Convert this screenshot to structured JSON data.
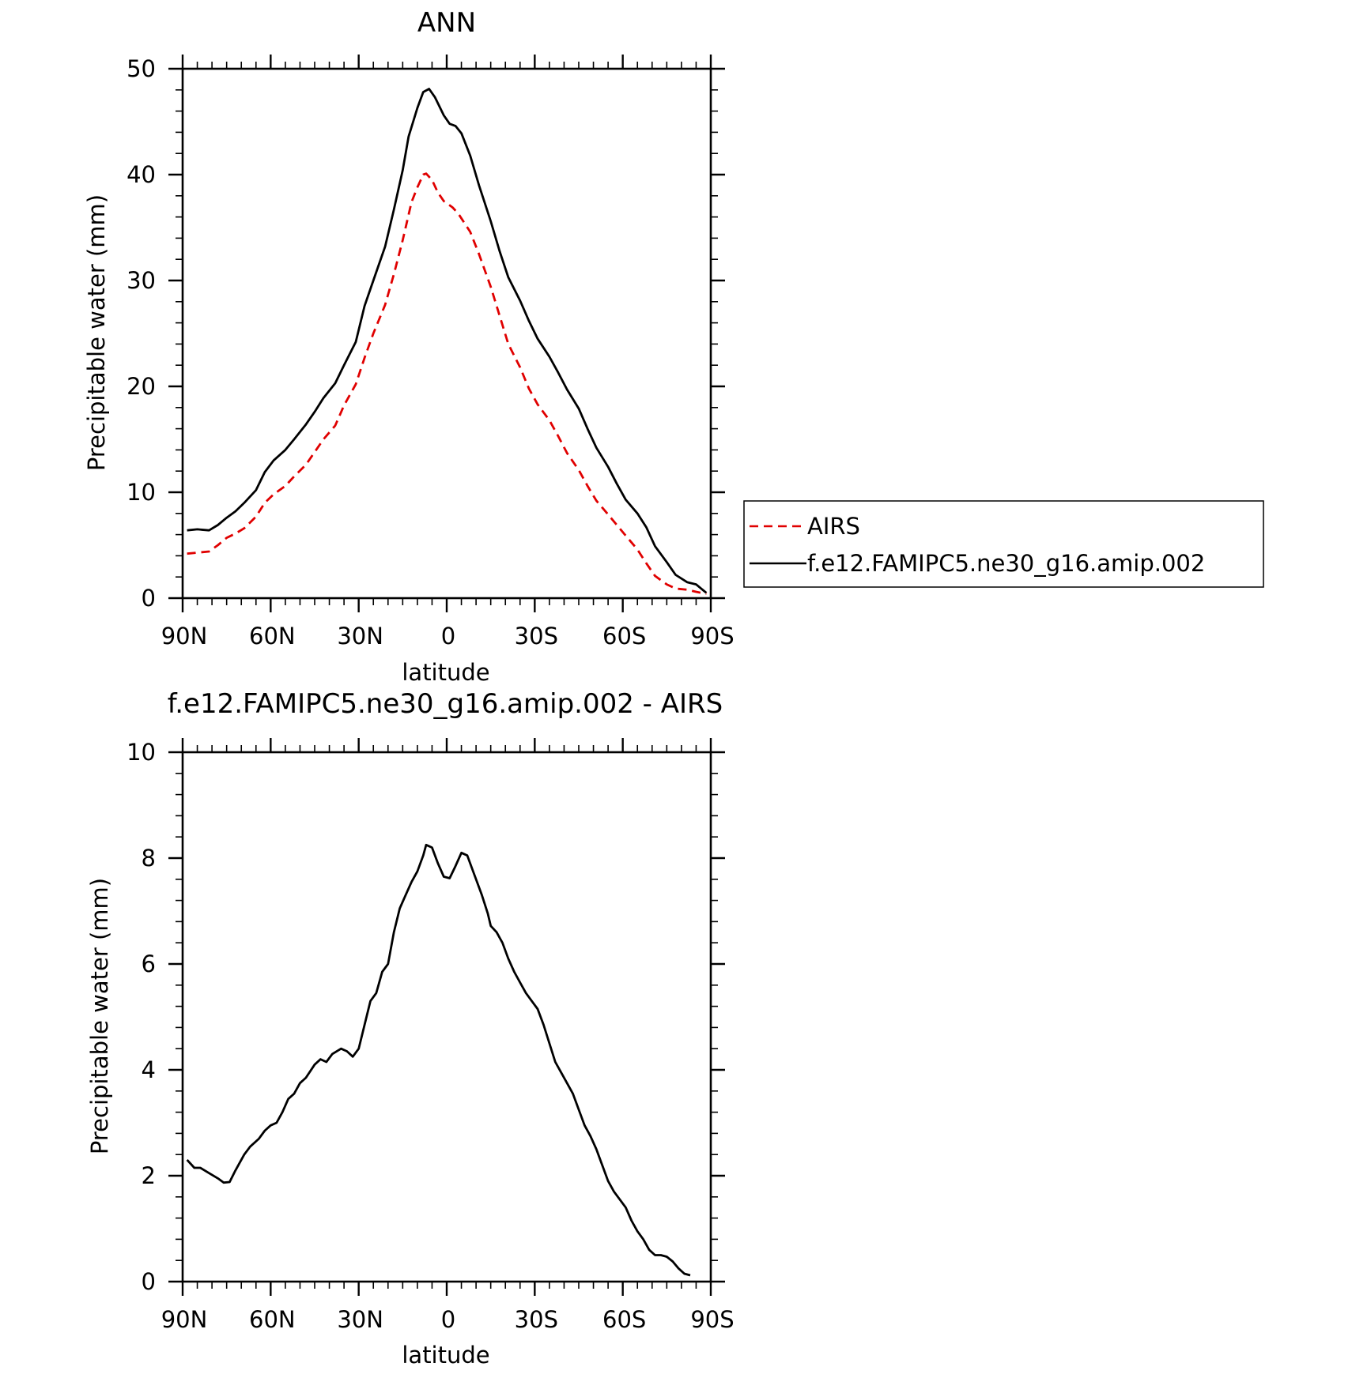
{
  "chart_data": [
    {
      "type": "line",
      "title": "ANN",
      "xlabel": "latitude",
      "ylabel": "Precipitable water (mm)",
      "xlim": [
        90,
        -90
      ],
      "ylim": [
        0,
        50
      ],
      "x_tick_values": [
        90,
        60,
        30,
        0,
        -30,
        -60,
        -90
      ],
      "x_tick_labels": [
        "90N",
        "60N",
        "30N",
        "0",
        "30S",
        "60S",
        "90S"
      ],
      "y_tick_values": [
        0,
        10,
        20,
        30,
        40,
        50
      ],
      "y_tick_labels": [
        "0",
        "10",
        "20",
        "30",
        "40",
        "50"
      ],
      "grid": false,
      "legend_position": "right",
      "series": [
        {
          "name": "AIRS",
          "color": "#e00000",
          "dash": "dashed",
          "points": [
            [
              88.5,
              4.2
            ],
            [
              85,
              4.3
            ],
            [
              81,
              4.4
            ],
            [
              78,
              5.0
            ],
            [
              75,
              5.7
            ],
            [
              72,
              6.1
            ],
            [
              69,
              6.6
            ],
            [
              65,
              7.7
            ],
            [
              62,
              9.0
            ],
            [
              59,
              9.8
            ],
            [
              55,
              10.6
            ],
            [
              52,
              11.5
            ],
            [
              48,
              12.6
            ],
            [
              45,
              13.8
            ],
            [
              42,
              15.0
            ],
            [
              38,
              16.3
            ],
            [
              35,
              18.2
            ],
            [
              31,
              20.2
            ],
            [
              28,
              22.7
            ],
            [
              25,
              25.0
            ],
            [
              21,
              27.7
            ],
            [
              18,
              30.6
            ],
            [
              15,
              33.8
            ],
            [
              12,
              37.4
            ],
            [
              10,
              38.8
            ],
            [
              8,
              40.0
            ],
            [
              7,
              40.1
            ],
            [
              5,
              39.5
            ],
            [
              3,
              38.3
            ],
            [
              1,
              37.5
            ],
            [
              -2,
              36.9
            ],
            [
              -4,
              36.3
            ],
            [
              -8,
              34.6
            ],
            [
              -11,
              32.5
            ],
            [
              -15,
              29.4
            ],
            [
              -18,
              26.7
            ],
            [
              -21,
              24.0
            ],
            [
              -25,
              21.8
            ],
            [
              -28,
              19.8
            ],
            [
              -31,
              18.3
            ],
            [
              -35,
              16.8
            ],
            [
              -38,
              15.3
            ],
            [
              -41,
              13.7
            ],
            [
              -45,
              12.1
            ],
            [
              -48,
              10.6
            ],
            [
              -51,
              9.2
            ],
            [
              -55,
              7.9
            ],
            [
              -58,
              6.9
            ],
            [
              -61,
              5.9
            ],
            [
              -65,
              4.6
            ],
            [
              -68,
              3.3
            ],
            [
              -71,
              2.1
            ],
            [
              -75,
              1.3
            ],
            [
              -78,
              0.9
            ],
            [
              -82,
              0.8
            ],
            [
              -85,
              0.6
            ],
            [
              -88.5,
              0.4
            ]
          ]
        },
        {
          "name": "f.e12.FAMIPC5.ne30_g16.amip.002",
          "color": "#000000",
          "dash": "solid",
          "points": [
            [
              88.5,
              6.4
            ],
            [
              85,
              6.5
            ],
            [
              81,
              6.4
            ],
            [
              78,
              6.9
            ],
            [
              75,
              7.6
            ],
            [
              72,
              8.2
            ],
            [
              69,
              9.0
            ],
            [
              65,
              10.2
            ],
            [
              62,
              11.9
            ],
            [
              59,
              13.0
            ],
            [
              55,
              14.0
            ],
            [
              52,
              15.0
            ],
            [
              48,
              16.4
            ],
            [
              45,
              17.6
            ],
            [
              42,
              18.9
            ],
            [
              38,
              20.3
            ],
            [
              35,
              22.0
            ],
            [
              31,
              24.2
            ],
            [
              28,
              27.6
            ],
            [
              25,
              30.0
            ],
            [
              21,
              33.2
            ],
            [
              18,
              36.7
            ],
            [
              15,
              40.4
            ],
            [
              13,
              43.6
            ],
            [
              10,
              46.3
            ],
            [
              8,
              47.8
            ],
            [
              6,
              48.1
            ],
            [
              4,
              47.3
            ],
            [
              1,
              45.6
            ],
            [
              -1,
              44.8
            ],
            [
              -3,
              44.6
            ],
            [
              -5,
              43.9
            ],
            [
              -8,
              41.8
            ],
            [
              -11,
              39.0
            ],
            [
              -15,
              35.6
            ],
            [
              -18,
              32.8
            ],
            [
              -21,
              30.3
            ],
            [
              -25,
              28.1
            ],
            [
              -28,
              26.2
            ],
            [
              -31,
              24.5
            ],
            [
              -35,
              22.8
            ],
            [
              -38,
              21.3
            ],
            [
              -41,
              19.7
            ],
            [
              -45,
              17.9
            ],
            [
              -48,
              16.0
            ],
            [
              -51,
              14.2
            ],
            [
              -55,
              12.4
            ],
            [
              -58,
              10.8
            ],
            [
              -61,
              9.3
            ],
            [
              -65,
              8.0
            ],
            [
              -68,
              6.7
            ],
            [
              -71,
              4.9
            ],
            [
              -75,
              3.4
            ],
            [
              -78,
              2.2
            ],
            [
              -82,
              1.5
            ],
            [
              -85,
              1.3
            ],
            [
              -88.5,
              0.5
            ]
          ]
        }
      ]
    },
    {
      "type": "line",
      "title": "f.e12.FAMIPC5.ne30_g16.amip.002 - AIRS",
      "xlabel": "latitude",
      "ylabel": "Precipitable water (mm)",
      "xlim": [
        90,
        -90
      ],
      "ylim": [
        0,
        10
      ],
      "x_tick_values": [
        90,
        60,
        30,
        0,
        -30,
        -60,
        -90
      ],
      "x_tick_labels": [
        "90N",
        "60N",
        "30N",
        "0",
        "30S",
        "60S",
        "90S"
      ],
      "y_tick_values": [
        0,
        2,
        4,
        6,
        8,
        10
      ],
      "y_tick_labels": [
        "0",
        "2",
        "4",
        "6",
        "8",
        "10"
      ],
      "grid": false,
      "series": [
        {
          "color": "#000000",
          "dash": "solid",
          "points": [
            [
              88.5,
              2.3
            ],
            [
              86,
              2.15
            ],
            [
              84,
              2.15
            ],
            [
              81,
              2.05
            ],
            [
              78,
              1.95
            ],
            [
              76,
              1.87
            ],
            [
              74,
              1.88
            ],
            [
              72,
              2.1
            ],
            [
              69,
              2.4
            ],
            [
              67,
              2.55
            ],
            [
              64,
              2.7
            ],
            [
              62,
              2.85
            ],
            [
              60,
              2.95
            ],
            [
              58,
              3.0
            ],
            [
              56,
              3.2
            ],
            [
              54,
              3.45
            ],
            [
              52,
              3.55
            ],
            [
              50,
              3.75
            ],
            [
              48,
              3.85
            ],
            [
              45,
              4.1
            ],
            [
              43,
              4.2
            ],
            [
              41,
              4.15
            ],
            [
              39,
              4.3
            ],
            [
              36,
              4.4
            ],
            [
              34,
              4.35
            ],
            [
              32,
              4.25
            ],
            [
              30,
              4.4
            ],
            [
              28,
              4.85
            ],
            [
              26,
              5.3
            ],
            [
              24,
              5.45
            ],
            [
              22,
              5.85
            ],
            [
              20,
              6.0
            ],
            [
              18,
              6.6
            ],
            [
              16,
              7.05
            ],
            [
              14,
              7.3
            ],
            [
              12,
              7.55
            ],
            [
              10,
              7.75
            ],
            [
              8,
              8.05
            ],
            [
              7,
              8.25
            ],
            [
              5,
              8.2
            ],
            [
              3,
              7.9
            ],
            [
              1,
              7.65
            ],
            [
              -1,
              7.62
            ],
            [
              -3,
              7.85
            ],
            [
              -5,
              8.1
            ],
            [
              -7,
              8.05
            ],
            [
              -9,
              7.75
            ],
            [
              -12,
              7.3
            ],
            [
              -14,
              6.95
            ],
            [
              -15,
              6.72
            ],
            [
              -17,
              6.6
            ],
            [
              -19,
              6.4
            ],
            [
              -21,
              6.1
            ],
            [
              -23,
              5.85
            ],
            [
              -25,
              5.65
            ],
            [
              -27,
              5.45
            ],
            [
              -29,
              5.3
            ],
            [
              -31,
              5.15
            ],
            [
              -33,
              4.85
            ],
            [
              -35,
              4.5
            ],
            [
              -37,
              4.15
            ],
            [
              -39,
              3.95
            ],
            [
              -41,
              3.75
            ],
            [
              -43,
              3.55
            ],
            [
              -45,
              3.25
            ],
            [
              -47,
              2.95
            ],
            [
              -49,
              2.75
            ],
            [
              -51,
              2.5
            ],
            [
              -53,
              2.2
            ],
            [
              -55,
              1.9
            ],
            [
              -57,
              1.7
            ],
            [
              -59,
              1.55
            ],
            [
              -61,
              1.4
            ],
            [
              -63,
              1.15
            ],
            [
              -65,
              0.95
            ],
            [
              -67,
              0.8
            ],
            [
              -69,
              0.6
            ],
            [
              -71,
              0.5
            ],
            [
              -73,
              0.5
            ],
            [
              -75,
              0.47
            ],
            [
              -77,
              0.38
            ],
            [
              -79,
              0.25
            ],
            [
              -81,
              0.15
            ],
            [
              -83,
              0.12
            ]
          ]
        }
      ]
    }
  ]
}
